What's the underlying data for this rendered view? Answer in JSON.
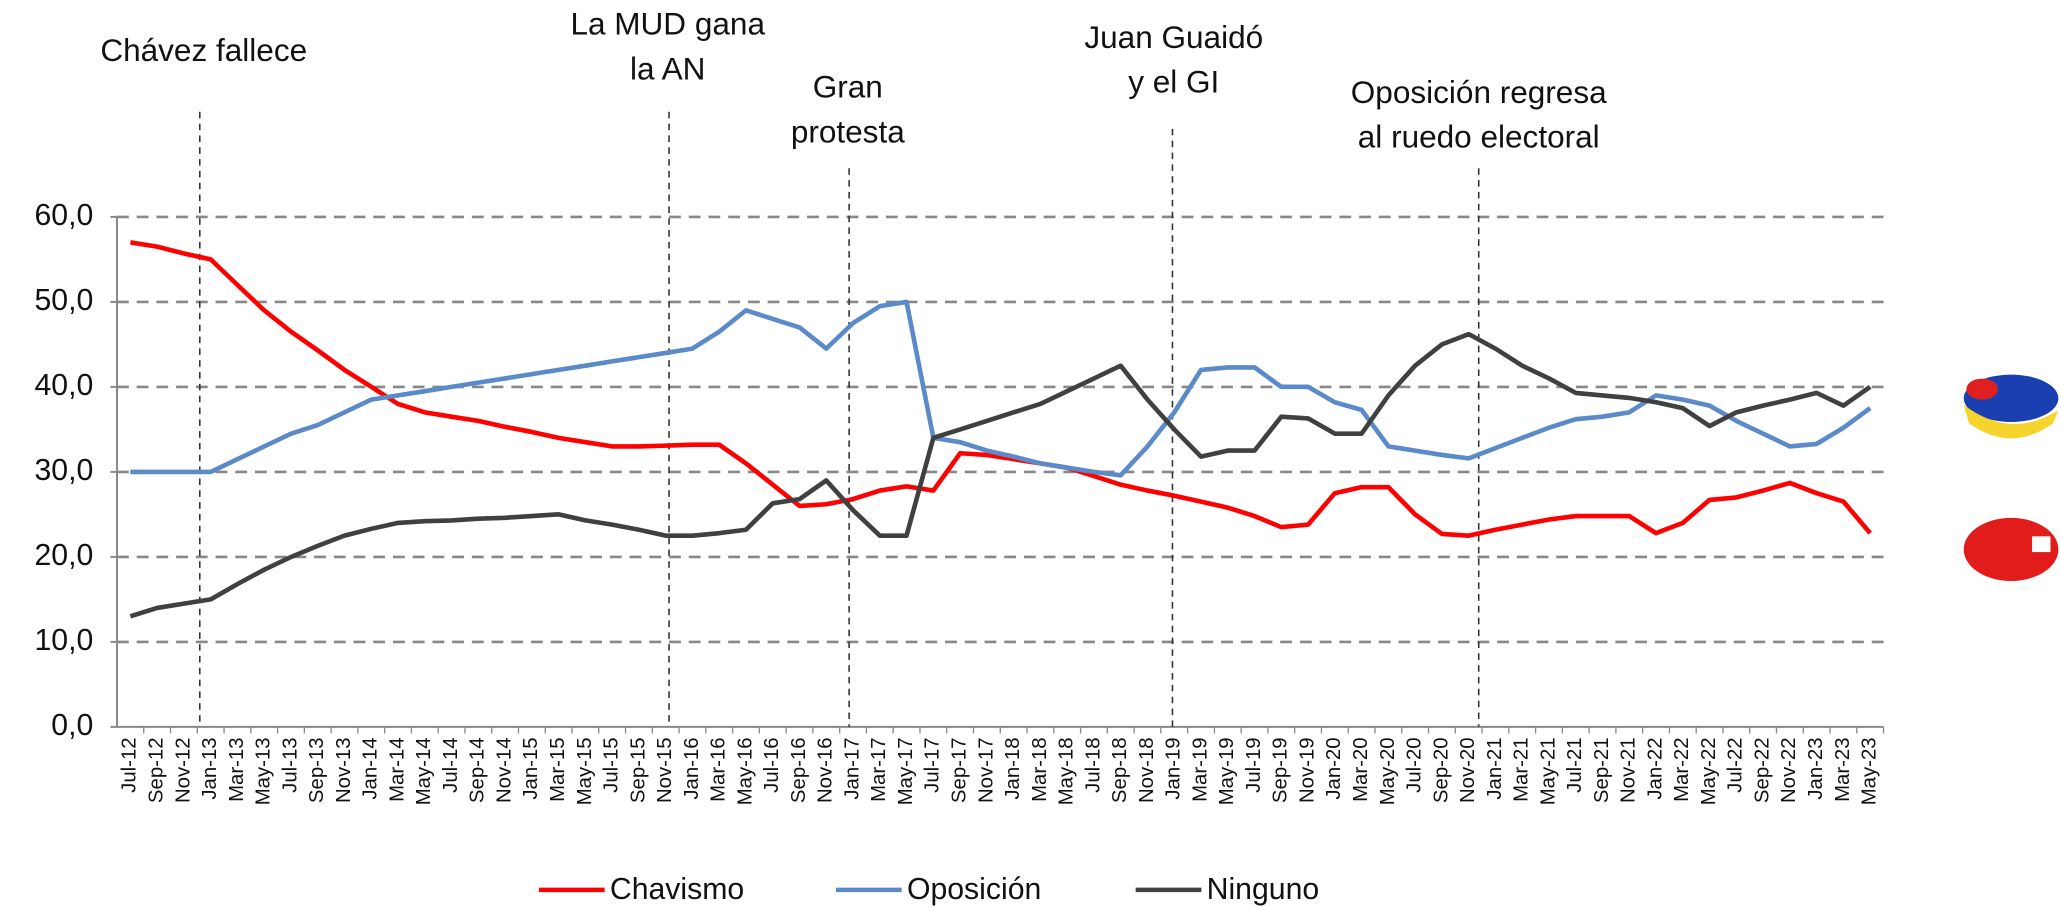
{
  "chart_data": {
    "type": "line",
    "annotations": [
      {
        "lines": [
          "Chávez fallece"
        ]
      },
      {
        "lines": [
          "La MUD gana",
          "la AN"
        ]
      },
      {
        "lines": [
          "Gran",
          "protesta"
        ]
      },
      {
        "lines": [
          "Juan Guaidó",
          "y el GI"
        ]
      },
      {
        "lines": [
          "Oposición regresa",
          "al ruedo electoral"
        ]
      }
    ],
    "categories": [
      "Jul-12",
      "Sep-12",
      "Nov-12",
      "Jan-13",
      "Mar-13",
      "May-13",
      "Jul-13",
      "Sep-13",
      "Nov-13",
      "Jan-14",
      "Mar-14",
      "May-14",
      "Jul-14",
      "Sep-14",
      "Nov-14",
      "Jan-15",
      "Mar-15",
      "May-15",
      "Jul-15",
      "Sep-15",
      "Nov-15",
      "Jan-16",
      "Mar-16",
      "May-16",
      "Jul-16",
      "Sep-16",
      "Nov-16",
      "Jan-17",
      "Mar-17",
      "May-17",
      "Jul-17",
      "Sep-17",
      "Nov-17",
      "Jan-18",
      "Mar-18",
      "May-18",
      "Jul-18",
      "Sep-18",
      "Nov-18",
      "Jan-19",
      "Mar-19",
      "May-19",
      "Jul-19",
      "Sep-19",
      "Nov-19",
      "Jan-20",
      "Mar-20",
      "May-20",
      "Jul-20",
      "Sep-20",
      "Nov-20",
      "Jan-21",
      "Mar-21",
      "May-21",
      "Jul-21",
      "Sep-21",
      "Nov-21",
      "Jan-22",
      "Mar-22",
      "May-22",
      "Jul-22",
      "Sep-22",
      "Nov-22",
      "Jan-23",
      "Mar-23",
      "May-23"
    ],
    "series": [
      {
        "name": "Chavismo",
        "color": "#ff0000",
        "values": [
          57,
          56.5,
          55.7,
          55,
          52,
          49,
          46.5,
          44.3,
          42,
          40,
          38,
          37,
          36.5,
          36,
          35.3,
          34.7,
          34,
          33.5,
          33,
          33,
          33.1,
          33.2,
          33.2,
          31,
          28.5,
          26,
          26.2,
          26.8,
          27.8,
          28.3,
          27.8,
          32.2,
          32,
          31.5,
          31,
          30.5,
          29.5,
          28.5,
          27.8,
          27.2,
          26.5,
          25.8,
          24.8,
          23.5,
          23.8,
          27.5,
          28.2,
          28.2,
          25,
          22.7,
          22.5,
          23.2,
          23.8,
          24.4,
          24.8,
          24.8,
          24.8,
          22.8,
          24,
          26.7,
          27,
          27.8,
          28.7,
          27.5,
          26.5,
          22.8
        ]
      },
      {
        "name": "Oposición",
        "color": "#5b8ac8",
        "values": [
          30,
          30,
          30,
          30,
          31.5,
          33,
          34.5,
          35.5,
          37,
          38.5,
          39,
          39.5,
          40,
          40.5,
          41,
          41.5,
          42,
          42.5,
          43,
          43.5,
          44,
          44.5,
          46.5,
          49,
          48,
          47,
          44.5,
          47.5,
          49.5,
          50,
          34,
          33.5,
          32.5,
          31.8,
          31,
          30.5,
          30,
          29.6,
          33,
          37,
          42,
          42.3,
          42.3,
          40,
          40,
          38.2,
          37.3,
          33,
          32.5,
          32,
          31.6,
          32.8,
          34,
          35.2,
          36.2,
          36.5,
          37,
          39,
          38.5,
          37.8,
          36,
          34.5,
          33,
          33.3,
          35.2,
          37.5
        ]
      },
      {
        "name": "Ninguno",
        "color": "#404040",
        "values": [
          13,
          14,
          14.5,
          15,
          16.8,
          18.5,
          20,
          21.3,
          22.5,
          23.3,
          24,
          24.2,
          24.3,
          24.5,
          24.6,
          24.8,
          25,
          24.3,
          23.8,
          23.2,
          22.5,
          22.5,
          22.8,
          23.2,
          26.3,
          26.8,
          29,
          25.5,
          22.5,
          22.5,
          34,
          35,
          36,
          37,
          38,
          39.5,
          41,
          42.5,
          38.5,
          35,
          31.8,
          32.5,
          32.5,
          36.5,
          36.3,
          34.5,
          34.5,
          39,
          42.5,
          45,
          46.2,
          44.5,
          42.5,
          41,
          39.3,
          39,
          38.7,
          38.2,
          37.5,
          35.4,
          37,
          37.8,
          38.5,
          39.3,
          37.8,
          40
        ]
      }
    ],
    "ylim": [
      0,
      60
    ],
    "yticks": [
      {
        "value": 0,
        "label": "0,0"
      },
      {
        "value": 10,
        "label": "10,0"
      },
      {
        "value": 20,
        "label": "20,0"
      },
      {
        "value": 30,
        "label": "30,0"
      },
      {
        "value": 40,
        "label": "40,0"
      },
      {
        "value": 50,
        "label": "50,0"
      },
      {
        "value": 60,
        "label": "60,0"
      }
    ],
    "grid": true
  }
}
